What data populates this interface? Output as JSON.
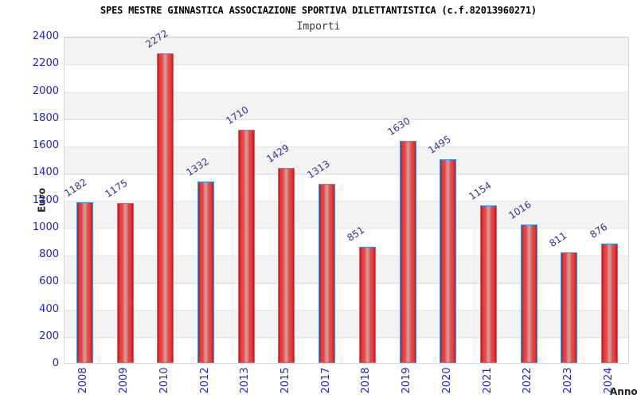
{
  "chart_data": {
    "type": "bar",
    "title": "SPES MESTRE GINNASTICA ASSOCIAZIONE SPORTIVA DILETTANTISTICA (c.f.82013960271)",
    "subtitle": "Importi",
    "xlabel": "Anno",
    "ylabel": "Euro",
    "categories": [
      "2008",
      "2009",
      "2010",
      "2012",
      "2013",
      "2015",
      "2017",
      "2018",
      "2019",
      "2020",
      "2021",
      "2022",
      "2023",
      "2024"
    ],
    "values": [
      1182,
      1175,
      2272,
      1332,
      1710,
      1429,
      1313,
      851,
      1630,
      1495,
      1154,
      1016,
      811,
      876
    ],
    "ylim": [
      0,
      2400
    ],
    "ytick_step": 200,
    "yticks": [
      0,
      200,
      400,
      600,
      800,
      1000,
      1200,
      1400,
      1600,
      1800,
      2000,
      2200,
      2400
    ],
    "grid": "horizontal-gridlines-with-alternating-bands",
    "legend": "none",
    "value_labels_shown": true,
    "colors": {
      "title": "#000000",
      "subtitle": "#3a3a3a",
      "axis_tick_labels": "#2222cc",
      "value_labels": "#333399",
      "axis_name_labels": "#222222",
      "bar_edge": "#c01515",
      "bar_bright": "#ee3333",
      "bar_mid": "#d49b9b",
      "bar_border": "#3d9be9",
      "band_gray": "#f3f3f3",
      "gridline": "#e1e1e1"
    }
  }
}
